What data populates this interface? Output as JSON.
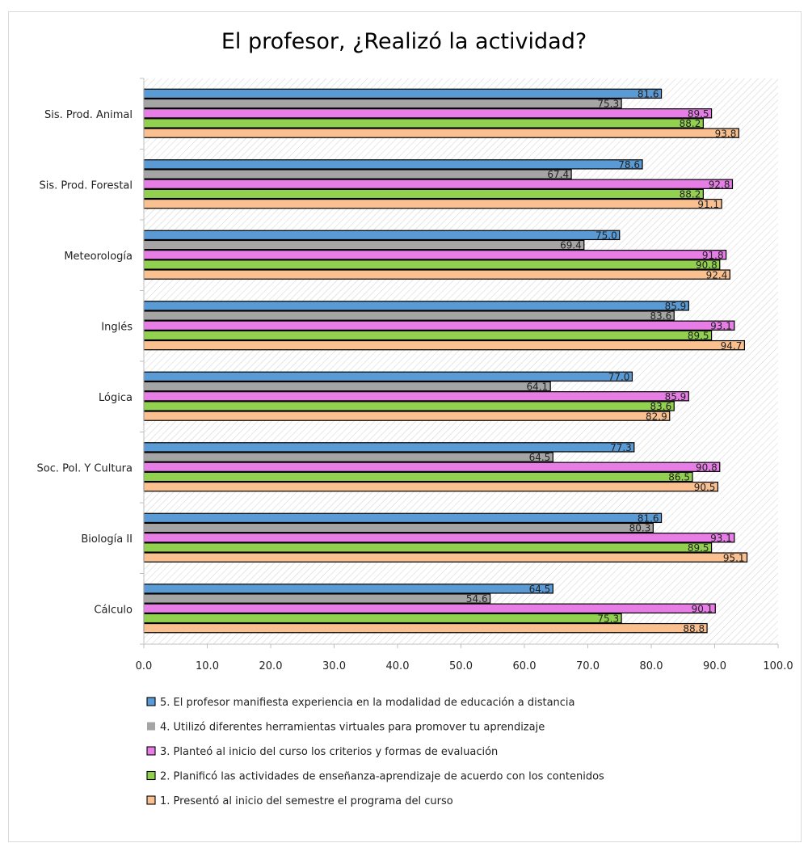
{
  "chart_data": {
    "type": "bar",
    "orientation": "horizontal",
    "title": "El profesor, ¿Realizó la actividad?",
    "xlabel": "",
    "ylabel": "",
    "xlim": [
      0,
      100
    ],
    "xticks": [
      "0.0",
      "10.0",
      "20.0",
      "30.0",
      "40.0",
      "50.0",
      "60.0",
      "70.0",
      "80.0",
      "90.0",
      "100.0"
    ],
    "grid": false,
    "plot_background": "diagonal-hatch",
    "legend_position": "bottom",
    "categories": [
      "Sis. Prod. Animal",
      "Sis. Prod. Forestal",
      "Meteorología",
      "Inglés",
      "Lógica",
      "Soc. Pol. Y Cultura",
      "Biología II",
      "Cálculo"
    ],
    "series": [
      {
        "name": "5. El profesor manifiesta experiencia en la modalidad de educación a distancia",
        "color": "#5b9bd5",
        "values": [
          81.6,
          78.6,
          75.0,
          85.9,
          77.0,
          77.3,
          81.6,
          64.5
        ],
        "labels": [
          "81.6",
          "78.6",
          "75.0",
          "85.9",
          "77.0",
          "77.3",
          "81.6",
          "64.5"
        ]
      },
      {
        "name": "4. Utilizó diferentes herramientas virtuales para promover tu aprendizaje",
        "color": "#a5a5a5",
        "values": [
          75.3,
          67.4,
          69.4,
          83.6,
          64.1,
          64.5,
          80.3,
          54.6
        ],
        "labels": [
          "75.3",
          "67.4",
          "69.4",
          "83.6",
          "64.1",
          "64.5",
          "80.3",
          "54.6"
        ]
      },
      {
        "name": "3. Planteó al inicio del curso los criterios y formas de evaluación",
        "color": "#e67ee6",
        "values": [
          89.5,
          92.8,
          91.8,
          93.1,
          85.9,
          90.8,
          93.1,
          90.1
        ],
        "labels": [
          "89.5",
          "92.8",
          "91.8",
          "93.1",
          "85.9",
          "90.8",
          "93.1",
          "90.1"
        ]
      },
      {
        "name": "2. Planificó las actividades de enseñanza-aprendizaje de acuerdo con los contenidos",
        "color": "#92d050",
        "values": [
          88.2,
          88.2,
          90.8,
          89.5,
          83.6,
          86.5,
          89.5,
          75.3
        ],
        "labels": [
          "88.2",
          "88.2",
          "90.8",
          "89.5",
          "83.6",
          "86.5",
          "89.5",
          "75.3"
        ]
      },
      {
        "name": "1. Presentó al inicio del semestre el programa del curso",
        "color": "#fac090",
        "values": [
          93.8,
          91.1,
          92.4,
          94.7,
          82.9,
          90.5,
          95.1,
          88.8
        ],
        "labels": [
          "93.8",
          "91.1",
          "92.4",
          "94.7",
          "82.9",
          "90.5",
          "95.1",
          "88.8"
        ]
      }
    ]
  }
}
